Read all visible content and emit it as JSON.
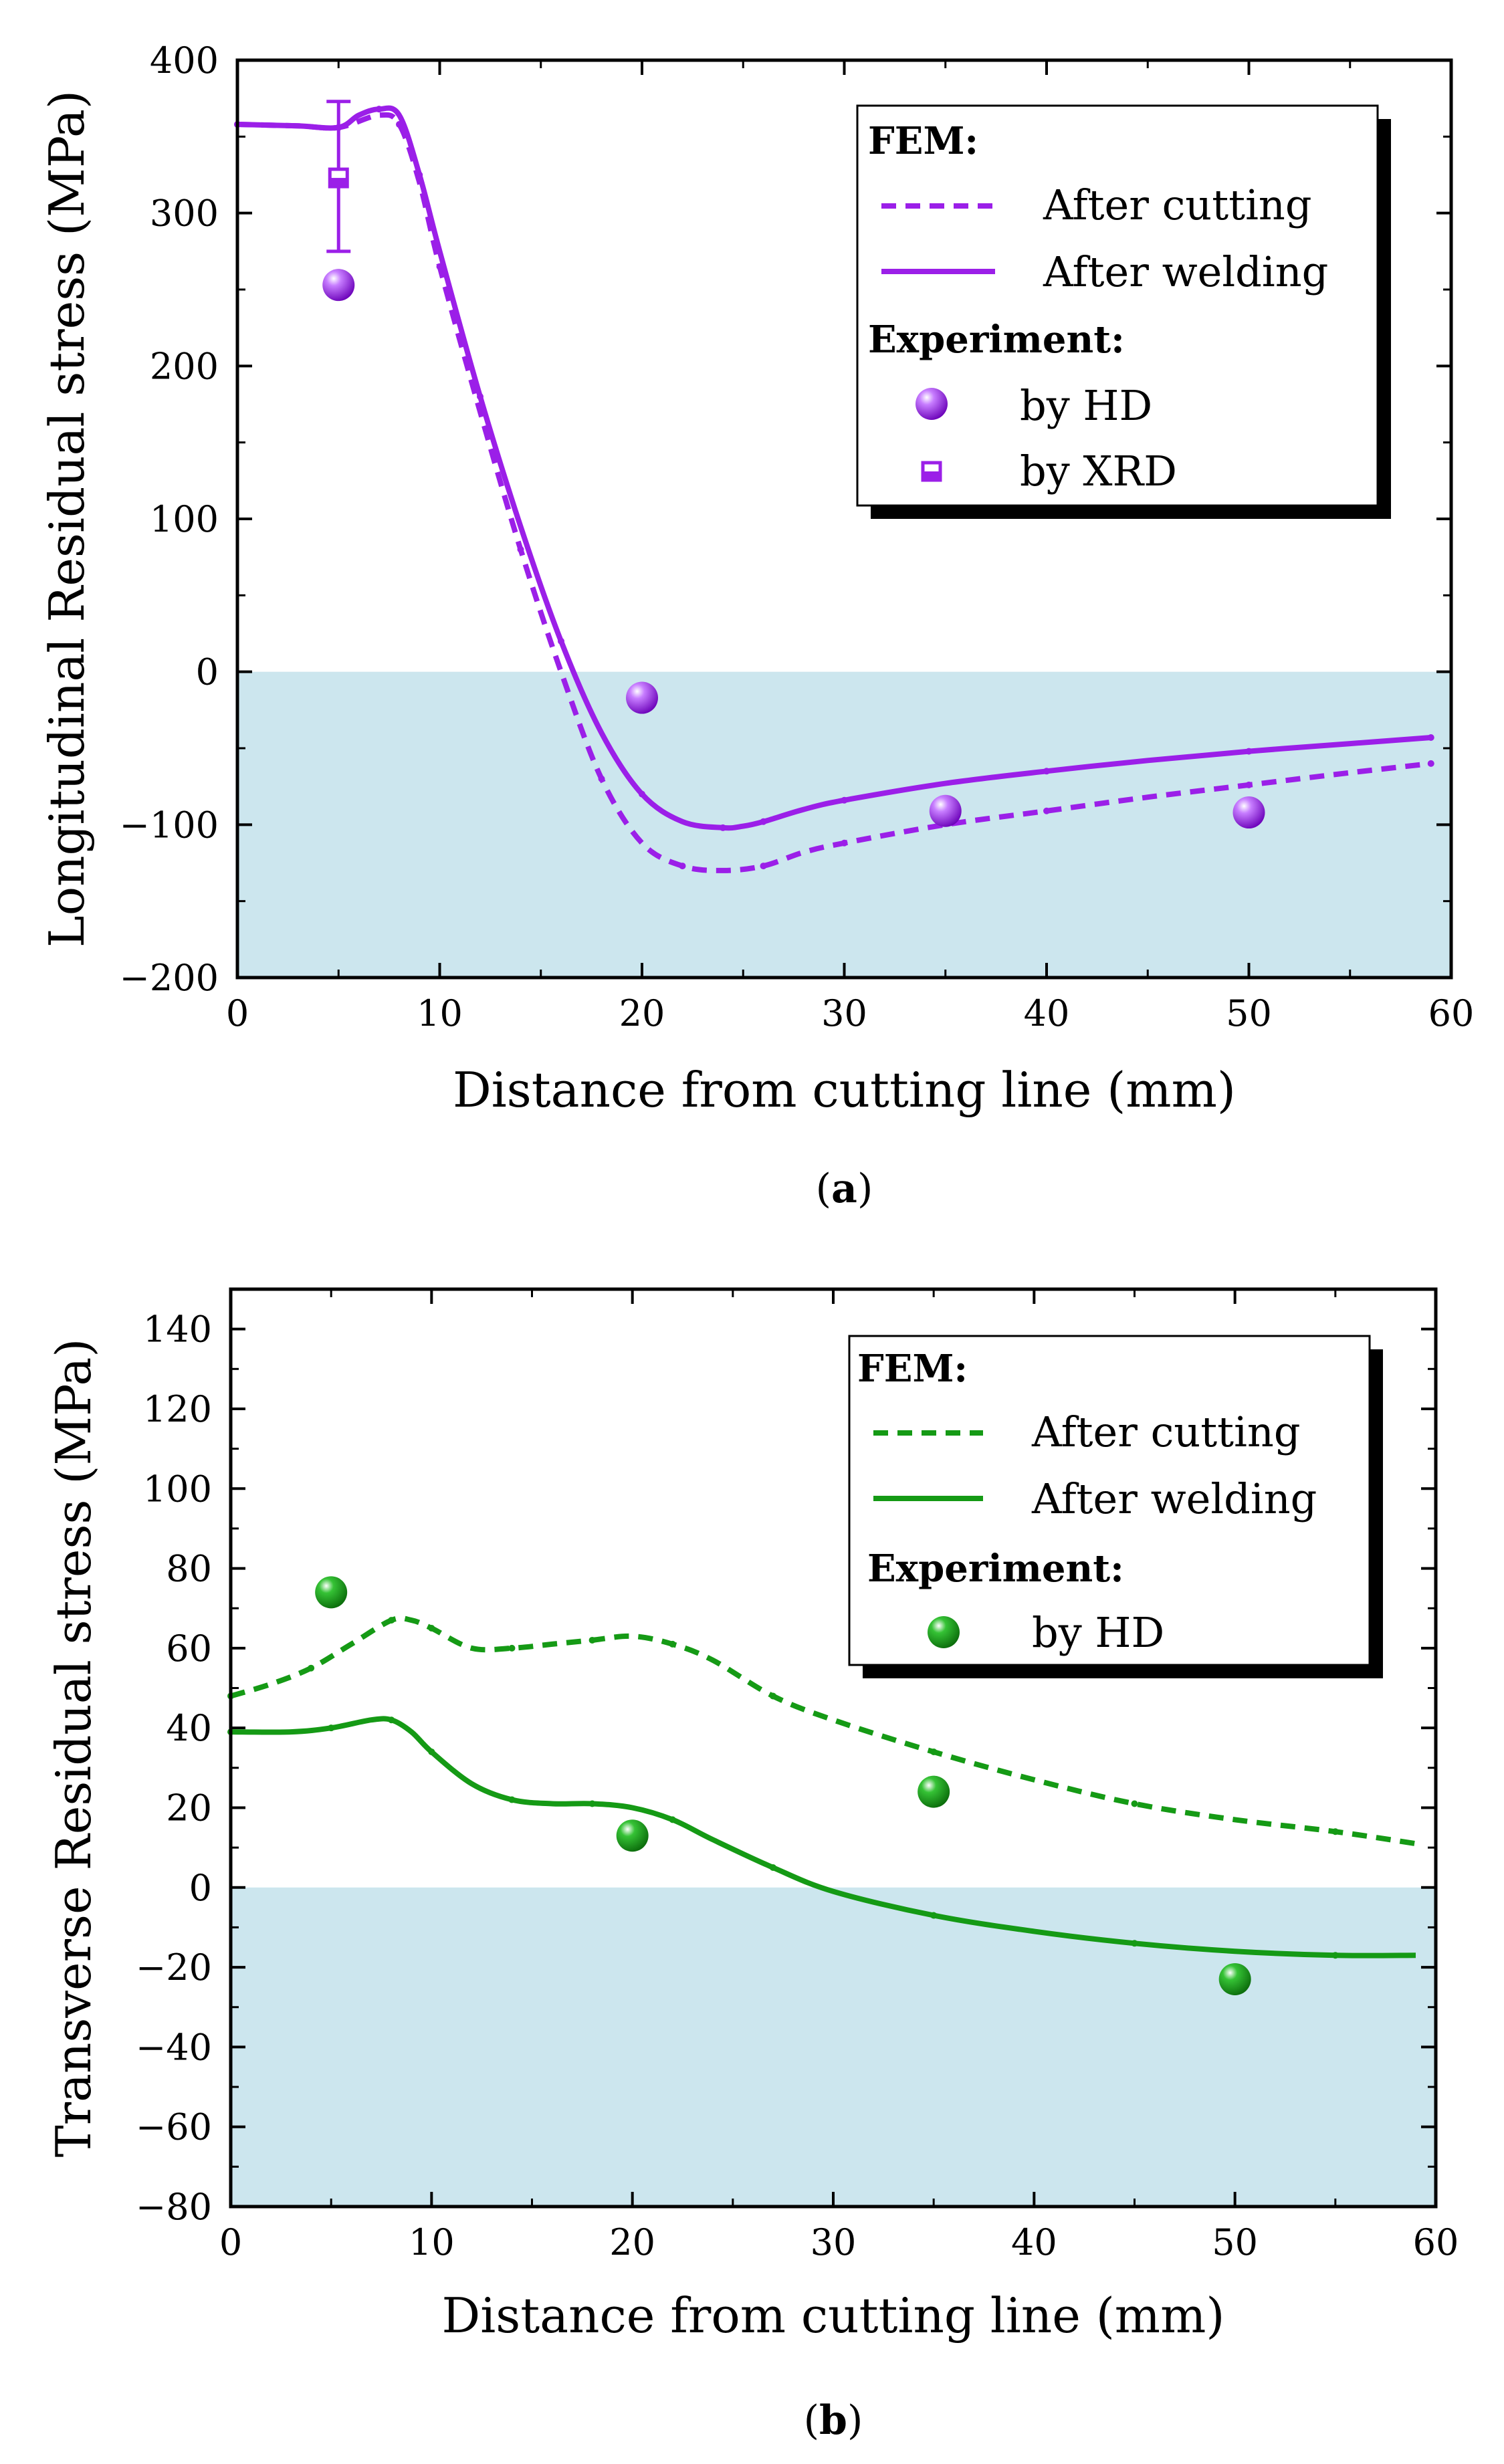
{
  "chart_data": [
    {
      "type": "line",
      "panel": "a",
      "panel_label": "a",
      "xlabel": "Distance from cutting line (mm)",
      "ylabel": "Longitudinal Residual stress (MPa)",
      "xlim": [
        0,
        60
      ],
      "ylim": [
        -200,
        400
      ],
      "xticks": [
        0,
        10,
        20,
        30,
        40,
        50,
        60
      ],
      "yticks": [
        -200,
        -100,
        0,
        100,
        200,
        300,
        400
      ],
      "xtick_labels": [
        "0",
        "10",
        "20",
        "30",
        "40",
        "50",
        "60"
      ],
      "ytick_labels": [
        "−200",
        "−100",
        "0",
        "100",
        "200",
        "300",
        "400"
      ],
      "shade_below": 0,
      "shade_color": "#cce6ee",
      "color": "#9b1fe8",
      "legend_position": "top-right",
      "legend": {
        "fem_header": "FEM:",
        "exp_header": "Experiment:",
        "entries": [
          "After cutting",
          "After welding",
          "by HD",
          "by XRD"
        ]
      },
      "series": [
        {
          "name": "After cutting",
          "style": "dashed",
          "x": [
            0,
            3,
            5,
            7,
            8,
            9,
            10,
            12,
            14,
            16,
            18,
            20,
            22,
            24,
            26,
            28,
            30,
            35,
            40,
            45,
            50,
            55,
            59
          ],
          "y": [
            358,
            357,
            356,
            364,
            358,
            320,
            265,
            170,
            80,
            0,
            -70,
            -112,
            -127,
            -130,
            -127,
            -118,
            -112,
            -100,
            -91,
            -82,
            -74,
            -66,
            -60
          ]
        },
        {
          "name": "After welding",
          "style": "solid",
          "x": [
            0,
            3,
            5,
            6,
            7,
            8,
            9,
            10,
            12,
            14,
            16,
            18,
            20,
            22,
            24,
            25,
            26,
            28,
            30,
            35,
            40,
            45,
            50,
            55,
            59
          ],
          "y": [
            358,
            357,
            356,
            364,
            368,
            364,
            325,
            275,
            180,
            95,
            20,
            -40,
            -80,
            -98,
            -102,
            -101,
            -98,
            -90,
            -84,
            -73,
            -65,
            -58,
            -52,
            -47,
            -43
          ]
        },
        {
          "name": "by HD",
          "style": "marker-sphere",
          "x": [
            5,
            20,
            35,
            50
          ],
          "y": [
            253,
            -17,
            -91,
            -92
          ]
        },
        {
          "name": "by XRD",
          "style": "marker-halfsquare",
          "x": [
            5
          ],
          "y": [
            323
          ],
          "err_low": [
            275
          ],
          "err_high": [
            373
          ]
        }
      ]
    },
    {
      "type": "line",
      "panel": "b",
      "panel_label": "b",
      "xlabel": "Distance from cutting line (mm)",
      "ylabel": "Transverse Residual stress (MPa)",
      "xlim": [
        0,
        60
      ],
      "ylim": [
        -80,
        150
      ],
      "xticks": [
        0,
        10,
        20,
        30,
        40,
        50,
        60
      ],
      "yticks": [
        -80,
        -60,
        -40,
        -20,
        0,
        20,
        40,
        60,
        80,
        100,
        120,
        140
      ],
      "xtick_labels": [
        "0",
        "10",
        "20",
        "30",
        "40",
        "50",
        "60"
      ],
      "ytick_labels": [
        "−80",
        "−60",
        "−40",
        "−20",
        "0",
        "20",
        "40",
        "60",
        "80",
        "100",
        "120",
        "140"
      ],
      "shade_below": 0,
      "shade_color": "#cce6ee",
      "color": "#159a15",
      "legend_position": "top-right",
      "legend": {
        "fem_header": "FEM:",
        "exp_header": "Experiment:",
        "entries": [
          "After cutting",
          "After welding",
          "by HD"
        ]
      },
      "series": [
        {
          "name": "After cutting",
          "style": "dashed",
          "x": [
            0,
            2,
            4,
            6,
            8,
            9,
            10,
            12,
            14,
            16,
            18,
            20,
            22,
            24,
            27,
            30,
            35,
            40,
            45,
            50,
            55,
            59
          ],
          "y": [
            48,
            51,
            55,
            61,
            67,
            67,
            65,
            60,
            60,
            61,
            62,
            63,
            61,
            57,
            48,
            42,
            34,
            27,
            21,
            17,
            14,
            11
          ]
        },
        {
          "name": "After welding",
          "style": "solid",
          "x": [
            0,
            3,
            5,
            7,
            8,
            9,
            10,
            12,
            14,
            16,
            18,
            20,
            22,
            24,
            27,
            30,
            35,
            40,
            45,
            50,
            55,
            59
          ],
          "y": [
            39,
            39,
            40,
            42,
            42,
            39,
            34,
            26,
            22,
            21,
            21,
            20,
            17,
            12,
            5,
            -1,
            -7,
            -11,
            -14,
            -16,
            -17,
            -17
          ]
        },
        {
          "name": "by HD",
          "style": "marker-sphere",
          "x": [
            5,
            20,
            35,
            50
          ],
          "y": [
            74,
            13,
            24,
            -23
          ]
        }
      ]
    }
  ]
}
